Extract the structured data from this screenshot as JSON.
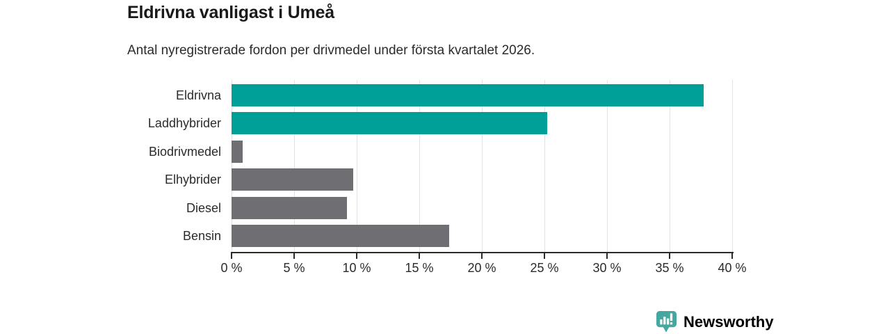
{
  "header": {
    "title": "Eldrivna vanligast i Umeå",
    "subtitle": "Antal nyregistrerade fordon per drivmedel under första kvartalet 2026."
  },
  "chart_data": {
    "type": "bar",
    "orientation": "horizontal",
    "categories": [
      "Eldrivna",
      "Laddhybrider",
      "Biodrivmedel",
      "Elhybrider",
      "Diesel",
      "Bensin"
    ],
    "values": [
      37.7,
      25.2,
      0.9,
      9.7,
      9.2,
      17.4
    ],
    "unit": "%",
    "bar_colors": [
      "#00a099",
      "#00a099",
      "#6e6e73",
      "#6e6e73",
      "#6e6e73",
      "#6e6e73"
    ],
    "highlight_color": "#00a099",
    "default_color": "#6e6e73",
    "xlim": [
      0,
      40
    ],
    "x_ticks": [
      0,
      5,
      10,
      15,
      20,
      25,
      30,
      35,
      40
    ],
    "x_tick_labels": [
      "0 %",
      "5 %",
      "10 %",
      "15 %",
      "20 %",
      "25 %",
      "30 %",
      "35 %",
      "40 %"
    ],
    "grid": "vertical-gridlines-on",
    "gridline_color": "#e2e2e2",
    "axis_color": "#2b2b2b",
    "legend": "none",
    "title": "Eldrivna vanligast i Umeå",
    "xlabel": "",
    "ylabel": ""
  },
  "footer": {
    "brand": "Newsworthy",
    "brand_color": "#2e918d",
    "icon": "newsworthy-barchart-pin-icon",
    "icon_color": "#45a79f"
  }
}
